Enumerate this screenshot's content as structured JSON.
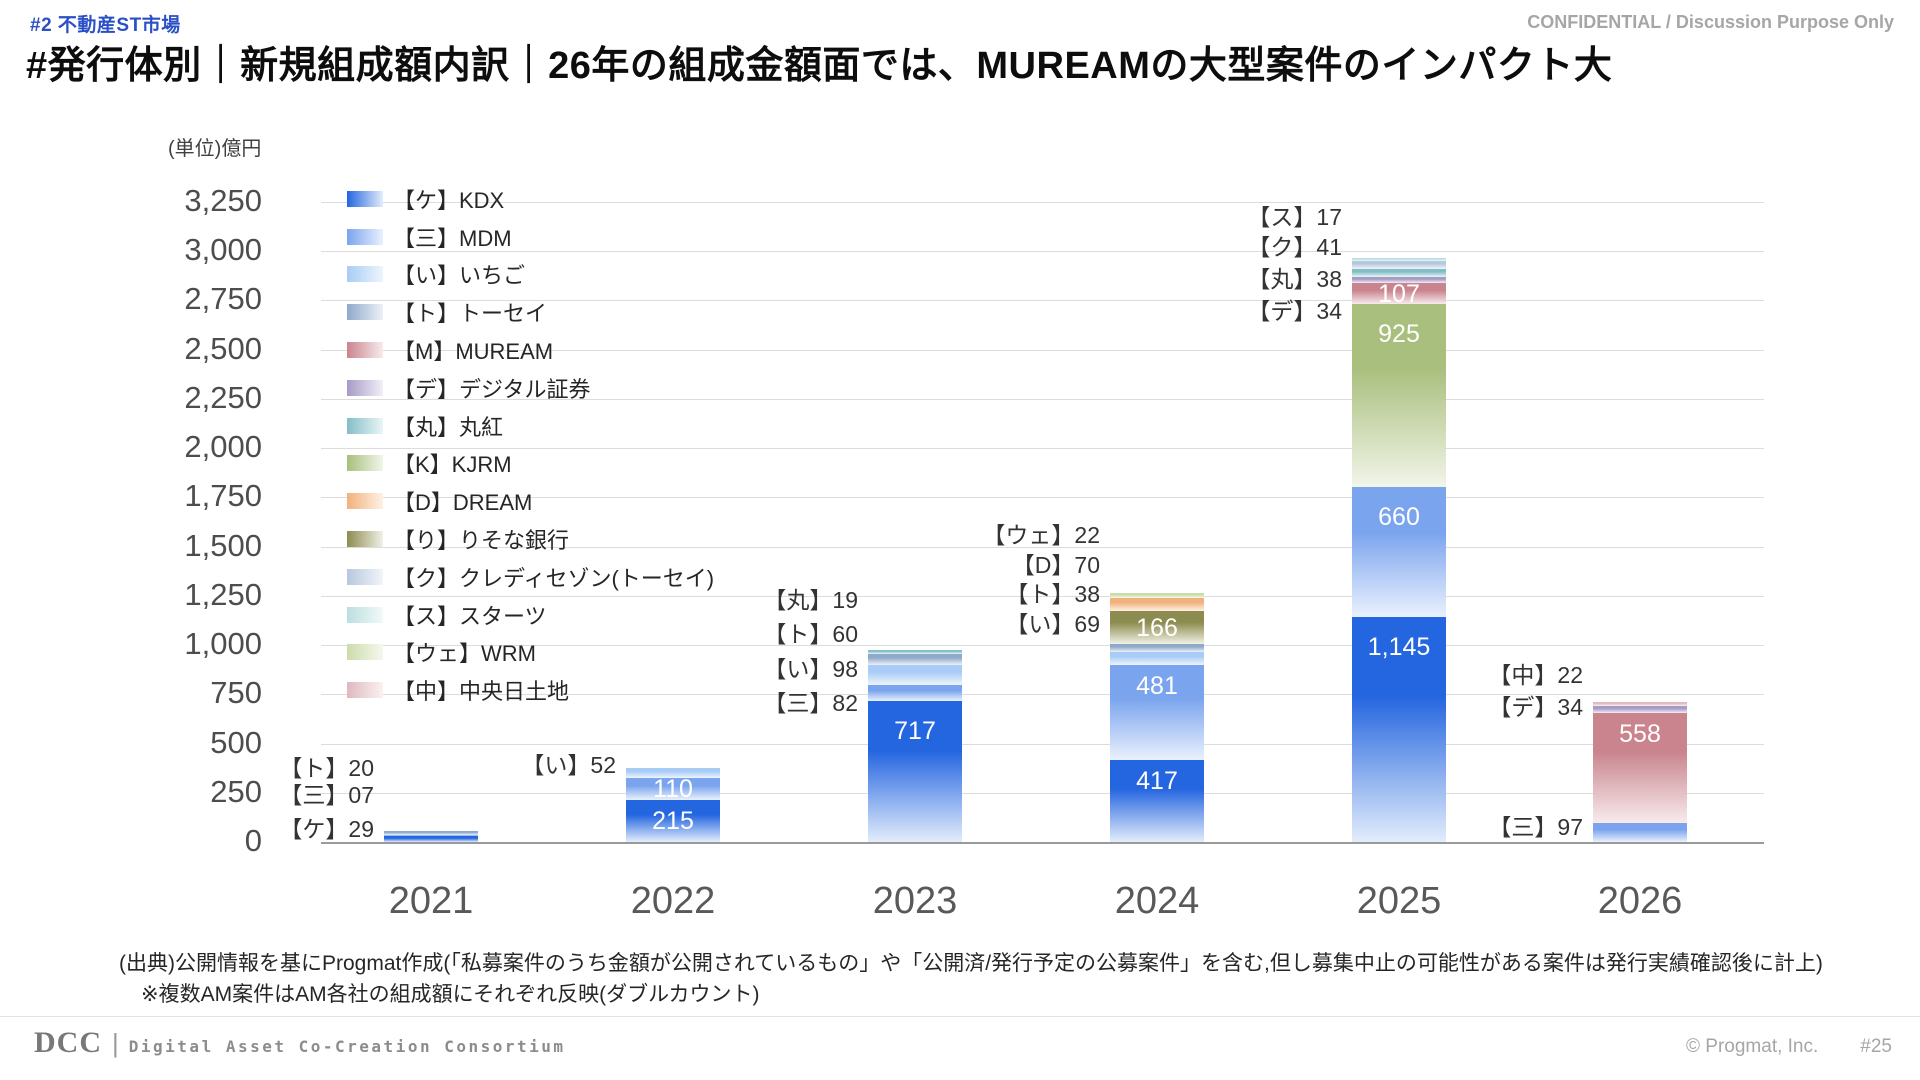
{
  "header": {
    "tag": "#2 不動産ST市場",
    "confidential": "CONFIDENTIAL / Discussion Purpose Only",
    "title": "#発行体別｜新規組成額内訳｜26年の組成金額面では、MUREAMの大型案件のインパクト大"
  },
  "chart_data": {
    "type": "bar",
    "stacked": true,
    "unit_label": "(単位)億円",
    "ylim": [
      0,
      3250
    ],
    "ytick_step": 250,
    "grid": true,
    "legend_position": "left-inside",
    "categories": [
      "2021",
      "2022",
      "2023",
      "2024",
      "2025",
      "2026"
    ],
    "legend": [
      {
        "key": "ケ",
        "label": "【ケ】KDX",
        "color": "#2465e0",
        "fade": "#e3edfb"
      },
      {
        "key": "三",
        "label": "【三】MDM",
        "color": "#7ba4ee",
        "fade": "#eaf1fd"
      },
      {
        "key": "い",
        "label": "【い】いちご",
        "color": "#a8ccf5",
        "fade": "#eef5fd"
      },
      {
        "key": "ト",
        "label": "【ト】トーセイ",
        "color": "#90a9cb",
        "fade": "#edf1f7"
      },
      {
        "key": "M",
        "label": "【M】MUREAM",
        "color": "#c9848e",
        "fade": "#f8ebed"
      },
      {
        "key": "デ",
        "label": "【デ】デジタル証券",
        "color": "#a79bc6",
        "fade": "#f1eff7"
      },
      {
        "key": "丸",
        "label": "【丸】丸紅",
        "color": "#83bec6",
        "fade": "#eaf6f7"
      },
      {
        "key": "K",
        "label": "【K】KJRM",
        "color": "#a9bf7d",
        "fade": "#f2f5e9"
      },
      {
        "key": "D",
        "label": "【D】DREAM",
        "color": "#f1b17c",
        "fade": "#fdf2e6"
      },
      {
        "key": "り",
        "label": "【り】りそな銀行",
        "color": "#8d8c50",
        "fade": "#f1f1e6"
      },
      {
        "key": "ク",
        "label": "【ク】クレディセゾン(トーセイ)",
        "color": "#b6c8dd",
        "fade": "#f2f5f9"
      },
      {
        "key": "ス",
        "label": "【ス】スターツ",
        "color": "#bcdede",
        "fade": "#f2f9f9"
      },
      {
        "key": "ウェ",
        "label": "【ウェ】WRM",
        "color": "#cbdcab",
        "fade": "#f5f8ec"
      },
      {
        "key": "中",
        "label": "【中】中央日土地",
        "color": "#dfb9be",
        "fade": "#faf1f2"
      }
    ],
    "bars": [
      {
        "year": "2021",
        "segments": [
          {
            "key": "ケ",
            "value": 29
          },
          {
            "key": "三",
            "value": 7
          },
          {
            "key": "ト",
            "value": 20
          }
        ]
      },
      {
        "year": "2022",
        "segments": [
          {
            "key": "ケ",
            "value": 215,
            "label": "215"
          },
          {
            "key": "三",
            "value": 110,
            "label": "110"
          },
          {
            "key": "い",
            "value": 52
          }
        ]
      },
      {
        "year": "2023",
        "segments": [
          {
            "key": "ケ",
            "value": 717,
            "label": "717"
          },
          {
            "key": "三",
            "value": 82
          },
          {
            "key": "い",
            "value": 98
          },
          {
            "key": "ト",
            "value": 60
          },
          {
            "key": "丸",
            "value": 19
          }
        ]
      },
      {
        "year": "2024",
        "segments": [
          {
            "key": "ケ",
            "value": 417,
            "label": "417"
          },
          {
            "key": "三",
            "value": 481,
            "label": "481"
          },
          {
            "key": "い",
            "value": 69
          },
          {
            "key": "ト",
            "value": 38
          },
          {
            "key": "り",
            "value": 166,
            "label": "166"
          },
          {
            "key": "D",
            "value": 70
          },
          {
            "key": "ウェ",
            "value": 22
          }
        ]
      },
      {
        "year": "2025",
        "segments": [
          {
            "key": "ケ",
            "value": 1145,
            "label": "1,145"
          },
          {
            "key": "三",
            "value": 660,
            "label": "660"
          },
          {
            "key": "K",
            "value": 925,
            "label": "925"
          },
          {
            "key": "M",
            "value": 107,
            "label": "107"
          },
          {
            "key": "デ",
            "value": 34
          },
          {
            "key": "丸",
            "value": 38
          },
          {
            "key": "ク",
            "value": 41
          },
          {
            "key": "ス",
            "value": 17
          }
        ]
      },
      {
        "year": "2026",
        "segments": [
          {
            "key": "三",
            "value": 97
          },
          {
            "key": "M",
            "value": 558,
            "label": "558"
          },
          {
            "key": "デ",
            "value": 34
          },
          {
            "key": "中",
            "value": 22
          }
        ]
      }
    ],
    "annotations": [
      {
        "year_index": 0,
        "items": [
          {
            "text": "【ト】20",
            "y_value": 376
          },
          {
            "text": "【三】07",
            "y_value": 239
          },
          {
            "text": "【ケ】29",
            "y_value": 66
          }
        ]
      },
      {
        "year_index": 1,
        "items": [
          {
            "text": "【い】52",
            "y_value": 391
          }
        ]
      },
      {
        "year_index": 2,
        "items": [
          {
            "text": "【丸】19",
            "y_value": 1229
          },
          {
            "text": "【ト】60",
            "y_value": 1056
          },
          {
            "text": "【い】98",
            "y_value": 879
          },
          {
            "text": "【三】82",
            "y_value": 706
          }
        ]
      },
      {
        "year_index": 3,
        "items": [
          {
            "text": "【ウェ】22",
            "y_value": 1559
          },
          {
            "text": "【D】70",
            "y_value": 1407
          },
          {
            "text": "【ト】38",
            "y_value": 1259
          },
          {
            "text": "【い】69",
            "y_value": 1107
          }
        ]
      },
      {
        "year_index": 4,
        "items": [
          {
            "text": "【ス】17",
            "y_value": 3174
          },
          {
            "text": "【ク】41",
            "y_value": 3022
          },
          {
            "text": "【丸】38",
            "y_value": 2859
          },
          {
            "text": "【デ】34",
            "y_value": 2697
          }
        ]
      },
      {
        "year_index": 5,
        "items": [
          {
            "text": "【中】22",
            "y_value": 848
          },
          {
            "text": "【デ】34",
            "y_value": 686
          },
          {
            "text": "【三】97",
            "y_value": 76
          }
        ]
      }
    ]
  },
  "footer": {
    "source_line1": "(出典)公開情報を基にProgmat作成(「私募案件のうち金額が公開されているもの」や「公開済/発行予定の公募案件」を含む,但し募集中止の可能性がある案件は発行実績確認後に計上)",
    "source_line2": "※複数AM案件はAM各社の組成額にそれぞれ反映(ダブルカウント)",
    "logo": "DCC",
    "consortium": "Digital Asset Co-Creation Consortium",
    "copyright": "© Progmat, Inc.",
    "page_number": "#25"
  }
}
